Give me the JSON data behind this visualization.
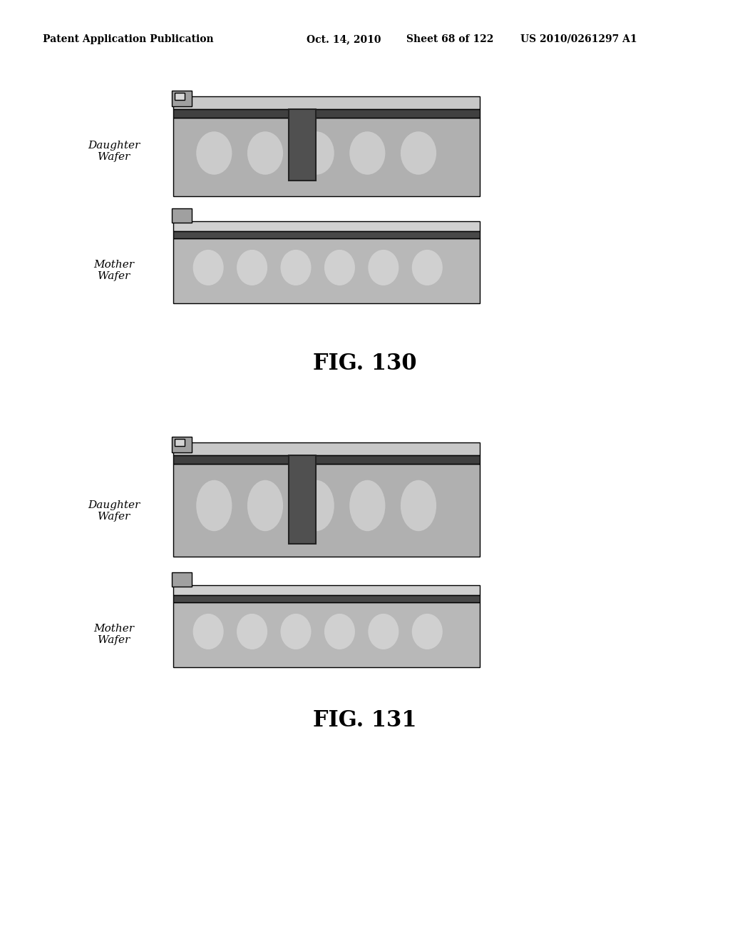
{
  "bg_color": "#ffffff",
  "header_text": "Patent Application Publication",
  "header_date": "Oct. 14, 2010",
  "header_sheet": "Sheet 68 of 122",
  "header_patent": "US 2010/0261297 A1",
  "fig130_label": "FIG. 130",
  "fig131_label": "FIG. 131",
  "label_daughter": "Daughter\nWafer",
  "label_mother": "Mother\nWafer",
  "wafer_fill": "#b0b0b0",
  "wafer_fill_light": "#d0d0d0",
  "dark_layer": "#505050",
  "connector_fill": "#606060",
  "tab_fill": "#909090",
  "white_bump_fill": "#e8e8e8",
  "outline_color": "#000000"
}
